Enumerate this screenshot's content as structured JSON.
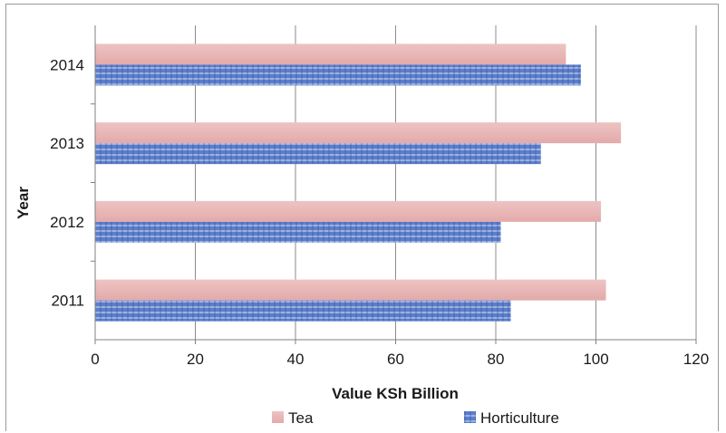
{
  "chart_data": {
    "type": "bar",
    "orientation": "horizontal",
    "categories": [
      "2011",
      "2012",
      "2013",
      "2014"
    ],
    "series": [
      {
        "name": "Tea",
        "values": [
          102,
          101,
          105,
          94
        ],
        "color": "#e8b4b4"
      },
      {
        "name": "Horticulture",
        "values": [
          83,
          81,
          89,
          97
        ],
        "color": "#4a6fc0"
      }
    ],
    "xlabel": "Value KSh Billion",
    "ylabel": "Year",
    "xlim": [
      0,
      120
    ],
    "xticks": [
      "0",
      "20",
      "40",
      "60",
      "80",
      "100",
      "120"
    ],
    "grid": true,
    "legend_position": "bottom"
  }
}
